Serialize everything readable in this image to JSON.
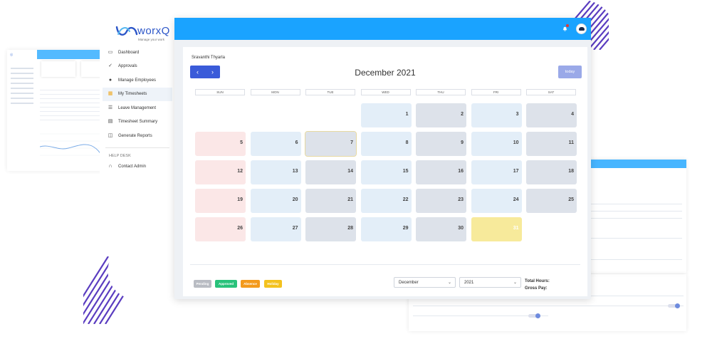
{
  "brand": {
    "name": "worxQ",
    "tagline": "Manage your work"
  },
  "sidebar": {
    "items": [
      {
        "label": "Dashboard",
        "icon": "monitor-icon"
      },
      {
        "label": "Approvals",
        "icon": "check-icon"
      },
      {
        "label": "Manage Employees",
        "icon": "user-icon"
      },
      {
        "label": "My Timesheets",
        "icon": "calendar-icon"
      },
      {
        "label": "Leave Management",
        "icon": "list-icon"
      },
      {
        "label": "Timesheet Summary",
        "icon": "document-icon"
      },
      {
        "label": "Generate Reports",
        "icon": "report-icon"
      }
    ],
    "active_index": 3,
    "help_section": "HELP DESK",
    "help_items": [
      {
        "label": "Contact Admin",
        "icon": "headset-icon"
      }
    ]
  },
  "topbar": {
    "accent": "#1aa3ff"
  },
  "calendar": {
    "user_name": "Sravanthi Thyarla",
    "title": "December 2021",
    "prev_label": "‹",
    "next_label": "›",
    "today_label": "today",
    "weekdays": [
      "SUN",
      "MON",
      "TUE",
      "WED",
      "THU",
      "FRI",
      "SAT"
    ],
    "weeks": [
      [
        null,
        null,
        null,
        1,
        2,
        3,
        4
      ],
      [
        5,
        6,
        7,
        8,
        9,
        10,
        11
      ],
      [
        12,
        13,
        14,
        15,
        16,
        17,
        18
      ],
      [
        19,
        20,
        21,
        22,
        23,
        24,
        25
      ],
      [
        26,
        27,
        28,
        29,
        30,
        31,
        null
      ]
    ],
    "today": 7,
    "holiday": 31
  },
  "legend": {
    "pending": "Pending",
    "approved": "Approved",
    "absence": "Absence",
    "holiday": "Holiday"
  },
  "filters": {
    "month": "December",
    "year": "2021"
  },
  "totals": {
    "hours_label": "Total Hours:",
    "pay_label": "Gross Pay:"
  }
}
